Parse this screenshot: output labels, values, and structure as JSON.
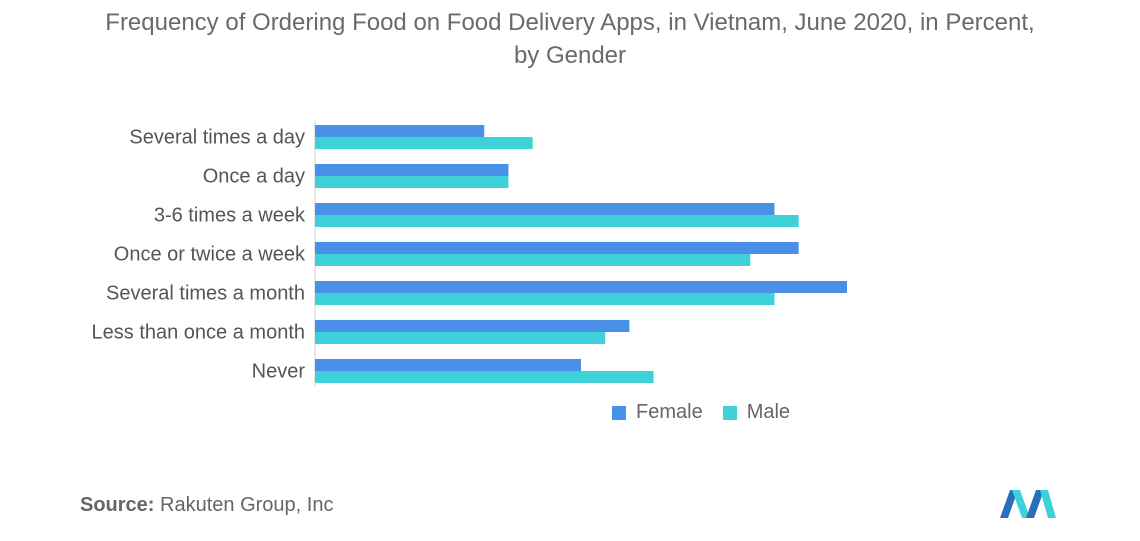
{
  "title": "Frequency of Ordering Food on Food Delivery Apps, in Vietnam, June 2020, in Percent,",
  "title_line2": "by Gender",
  "source_label": "Source:",
  "source_text": "Rakuten Group, Inc",
  "colors": {
    "female": "#4a8fe8",
    "male": "#3fd1d9",
    "axis": "#d0d0d0"
  },
  "chart_data": {
    "type": "bar",
    "orientation": "horizontal",
    "categories": [
      "Several times a day",
      "Once a day",
      "3-6 times a week",
      "Once or twice a week",
      "Several times a month",
      "Less than once a month",
      "Never"
    ],
    "series": [
      {
        "name": "Female",
        "values": [
          7,
          8,
          19,
          20,
          22,
          13,
          11
        ]
      },
      {
        "name": "Male",
        "values": [
          9,
          8,
          20,
          18,
          19,
          12,
          14
        ]
      }
    ],
    "xlim": [
      0,
      22
    ],
    "grid": false,
    "legend": "bottom"
  }
}
